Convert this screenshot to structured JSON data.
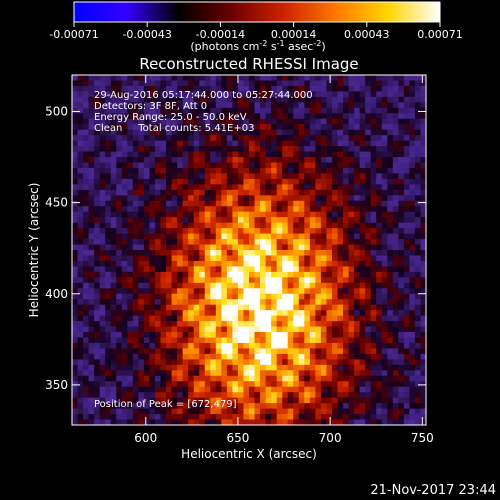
{
  "colorbar": {
    "ticks": [
      "-0.00071",
      "-0.00043",
      "-0.00014",
      "0.00014",
      "0.00043",
      "0.00071"
    ],
    "units_prefix": "(photons cm",
    "units_exp1": "-2",
    "units_mid": " s",
    "units_exp2": "-1",
    "units_mid2": " asec",
    "units_exp3": "-2",
    "units_suffix": ")",
    "colors": [
      "#0000ff",
      "#3300ff",
      "#000000",
      "#6a0000",
      "#cc2200",
      "#ff7700",
      "#ffd400",
      "#ffffff"
    ]
  },
  "chart_data": {
    "type": "heatmap",
    "title": "Reconstructed RHESSI Image",
    "xlabel": "Heliocentric X (arcsec)",
    "ylabel": "Heliocentric Y (arcsec)",
    "xlim": [
      560,
      752
    ],
    "ylim": [
      328,
      520
    ],
    "x_ticks": [
      "600",
      "650",
      "700",
      "750"
    ],
    "y_ticks": [
      "350",
      "400",
      "450",
      "500"
    ],
    "x_tick_values": [
      600,
      650,
      700,
      750
    ],
    "y_tick_values": [
      350,
      400,
      450,
      500
    ],
    "value_range": [
      -0.00071,
      0.00071
    ],
    "annotations": [
      "29-Aug-2016 05:17:44.000 to 05:27:44.000",
      "Detectors: 3F 8F, Att 0",
      "Energy Range: 25.0 - 50.0 keV",
      "Clean     Total counts: 5.41E+03"
    ],
    "peak_label": "Position of Peak = [672,479]",
    "peak_position": [
      672,
      479
    ]
  },
  "timestamp": "21-Nov-2017 23:44"
}
